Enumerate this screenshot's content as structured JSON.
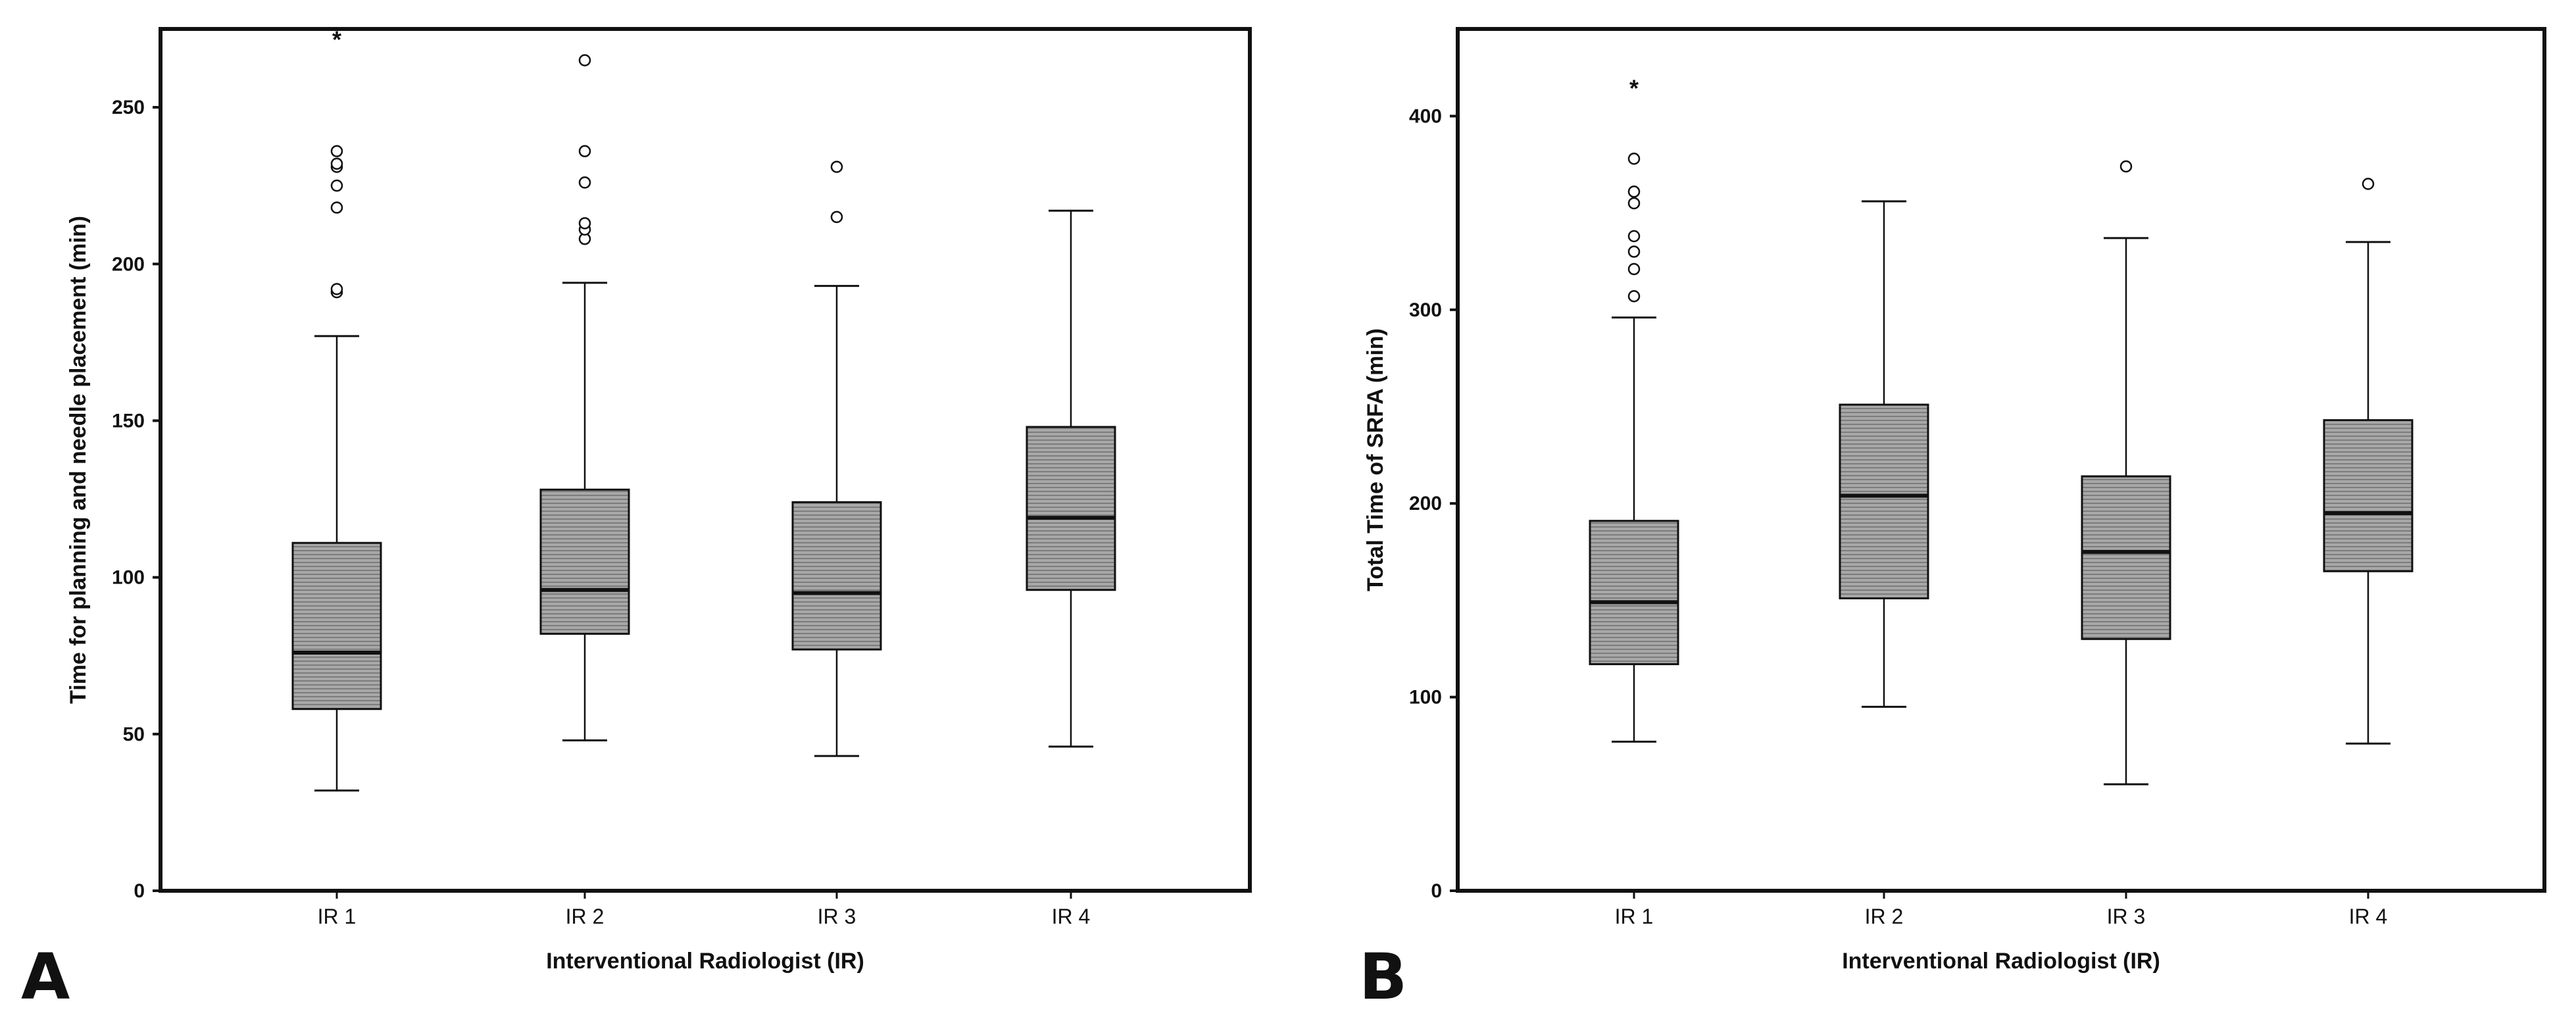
{
  "figure": {
    "panel_letters": [
      "A",
      "B"
    ]
  },
  "colors": {
    "box_fill": "#9a9a9a",
    "line": "#111111",
    "background": "#ffffff"
  },
  "chart_data": [
    {
      "type": "box",
      "panel": "A",
      "title": "",
      "xlabel": "Interventional Radiologist (IR)",
      "ylabel": "Time for planning and needle placement (min)",
      "ylim": [
        0,
        275
      ],
      "yticks": [
        0,
        50,
        100,
        150,
        200,
        250
      ],
      "categories": [
        "IR 1",
        "IR 2",
        "IR 3",
        "IR 4"
      ],
      "boxes": [
        {
          "category": "IR 1",
          "whisker_low": 32,
          "q1": 58,
          "median": 76,
          "q3": 111,
          "whisker_high": 177,
          "outliers": [
            191,
            192,
            218,
            225,
            231,
            232,
            236
          ],
          "extremes": [
            272
          ]
        },
        {
          "category": "IR 2",
          "whisker_low": 48,
          "q1": 82,
          "median": 96,
          "q3": 128,
          "whisker_high": 194,
          "outliers": [
            208,
            211,
            213,
            226,
            236,
            265
          ],
          "extremes": []
        },
        {
          "category": "IR 3",
          "whisker_low": 43,
          "q1": 77,
          "median": 95,
          "q3": 124,
          "whisker_high": 193,
          "outliers": [
            215,
            231
          ],
          "extremes": []
        },
        {
          "category": "IR 4",
          "whisker_low": 46,
          "q1": 96,
          "median": 119,
          "q3": 148,
          "whisker_high": 217,
          "outliers": [],
          "extremes": []
        }
      ]
    },
    {
      "type": "box",
      "panel": "B",
      "title": "",
      "xlabel": "Interventional Radiologist (IR)",
      "ylabel": "Total Time of SRFA (min)",
      "ylim": [
        0,
        445
      ],
      "yticks": [
        0,
        100,
        200,
        300,
        400
      ],
      "categories": [
        "IR 1",
        "IR 2",
        "IR 3",
        "IR 4"
      ],
      "boxes": [
        {
          "category": "IR 1",
          "whisker_low": 77,
          "q1": 117,
          "median": 149,
          "q3": 191,
          "whisker_high": 296,
          "outliers": [
            307,
            321,
            330,
            338,
            355,
            361,
            378
          ],
          "extremes": [
            415
          ]
        },
        {
          "category": "IR 2",
          "whisker_low": 95,
          "q1": 151,
          "median": 204,
          "q3": 251,
          "whisker_high": 356,
          "outliers": [],
          "extremes": []
        },
        {
          "category": "IR 3",
          "whisker_low": 55,
          "q1": 130,
          "median": 175,
          "q3": 214,
          "whisker_high": 337,
          "outliers": [
            374
          ],
          "extremes": []
        },
        {
          "category": "IR 4",
          "whisker_low": 76,
          "q1": 165,
          "median": 195,
          "q3": 243,
          "whisker_high": 335,
          "outliers": [
            365
          ],
          "extremes": []
        }
      ]
    }
  ]
}
